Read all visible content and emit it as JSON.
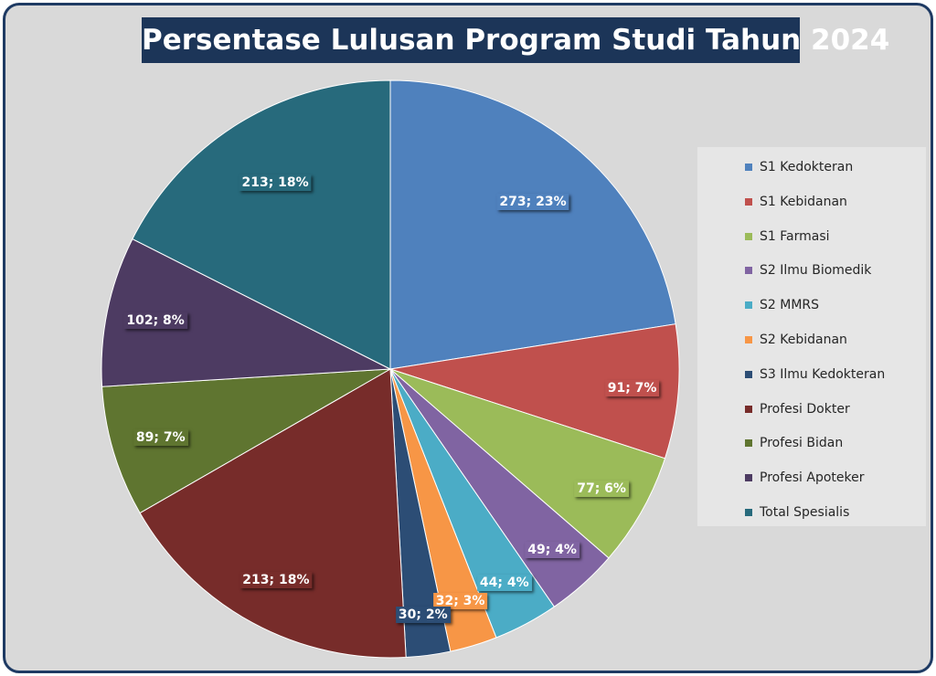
{
  "chart_data": {
    "type": "pie",
    "title": "Persentase Lulusan Program Studi Tahun 2024",
    "legend_position": "right",
    "slices": [
      {
        "name": "S1 Kedokteran",
        "value": 273,
        "percent": 23,
        "label": "273; 23%",
        "color": "#4f81bd"
      },
      {
        "name": "S1 Kebidanan",
        "value": 91,
        "percent": 7,
        "label": "91; 7%",
        "color": "#c0504d"
      },
      {
        "name": "S1 Farmasi",
        "value": 77,
        "percent": 6,
        "label": "77; 6%",
        "color": "#9bbb59"
      },
      {
        "name": "S2 Ilmu Biomedik",
        "value": 49,
        "percent": 4,
        "label": "49; 4%",
        "color": "#8064a2"
      },
      {
        "name": "S2 MMRS",
        "value": 44,
        "percent": 4,
        "label": "44; 4%",
        "color": "#4bacc6"
      },
      {
        "name": "S2 Kebidanan",
        "value": 32,
        "percent": 3,
        "label": "32; 3%",
        "color": "#f79646"
      },
      {
        "name": "S3 Ilmu Kedokteran",
        "value": 30,
        "percent": 2,
        "label": "30; 2%",
        "color": "#2c4d75"
      },
      {
        "name": "Profesi Dokter",
        "value": 213,
        "percent": 18,
        "label": "213; 18%",
        "color": "#772c2a"
      },
      {
        "name": "Profesi Bidan",
        "value": 89,
        "percent": 7,
        "label": "89; 7%",
        "color": "#5f7530"
      },
      {
        "name": "Profesi Apoteker",
        "value": 102,
        "percent": 8,
        "label": "102; 8%",
        "color": "#4d3b62"
      },
      {
        "name": "Total Spesialis",
        "value": 213,
        "percent": 18,
        "label": "213; 18%",
        "color": "#276a7c"
      }
    ]
  }
}
